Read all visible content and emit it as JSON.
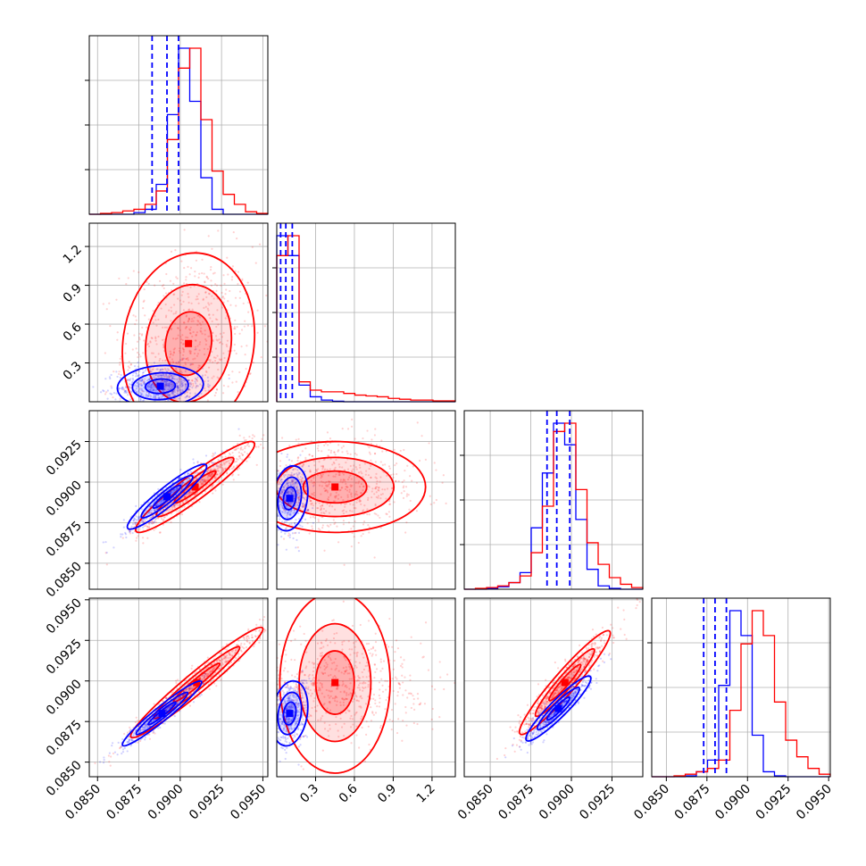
{
  "chart_data": {
    "type": "corner",
    "title": "",
    "grid": true,
    "n_params": 4,
    "colors": {
      "model_a": "#0000ff",
      "model_b": "#ff0000"
    },
    "series": [
      {
        "color": "#0000ff",
        "quantile_lines": [
          [
            0.0883,
            0.0892,
            0.0899
          ],
          [
            0.03,
            0.07,
            0.12
          ],
          [
            0.0885,
            0.0891,
            0.0899
          ],
          [
            0.0873,
            0.088,
            0.0887
          ]
        ]
      },
      {
        "color": "#ff0000"
      }
    ],
    "params": [
      {
        "range": [
          0.0845,
          0.0953
        ],
        "ticks": [
          "0.0850",
          "0.0875",
          "0.0900",
          "0.0925",
          "0.0950"
        ],
        "hist_blue": [
          0,
          0,
          0,
          0,
          1,
          3,
          18,
          60,
          100,
          68,
          22,
          3,
          0,
          0,
          0,
          0
        ],
        "hist_red": [
          0,
          0.5,
          1,
          2,
          3,
          6,
          14,
          45,
          88,
          100,
          57,
          26,
          12,
          6,
          1.5,
          0.5
        ]
      },
      {
        "range": [
          0.0,
          1.38
        ],
        "ticks": [
          "0.3",
          "0.6",
          "0.9",
          "1.2"
        ],
        "hist_blue": [
          100,
          88,
          10,
          3,
          1,
          0.3,
          0,
          0,
          0,
          0,
          0,
          0,
          0,
          0,
          0,
          0
        ],
        "hist_red": [
          88,
          100,
          12,
          7,
          6,
          6,
          5,
          4,
          3.5,
          3,
          2,
          1.5,
          1,
          1,
          0.5,
          0.5
        ]
      },
      {
        "range": [
          0.0834,
          0.0944
        ],
        "ticks": [
          "0.0850",
          "0.0875",
          "0.0900",
          "0.0925"
        ],
        "hist_blue": [
          0,
          0,
          0.5,
          1.5,
          4,
          10,
          37,
          70,
          100,
          87,
          42,
          12,
          2,
          0.5,
          0,
          0
        ],
        "hist_red": [
          0,
          0.5,
          1,
          2,
          4,
          8,
          22,
          50,
          95,
          100,
          60,
          28,
          15,
          7,
          3,
          1
        ]
      },
      {
        "range": [
          0.0841,
          0.0951
        ],
        "ticks": [
          "0.0850",
          "0.0875",
          "0.0900",
          "0.0925",
          "0.0950"
        ],
        "hist_blue": [
          0,
          0,
          0,
          0.5,
          3,
          10,
          55,
          100,
          85,
          25,
          3,
          0.5,
          0,
          0,
          0,
          0
        ],
        "hist_red": [
          0,
          0,
          0.5,
          1.5,
          3,
          5,
          10,
          40,
          80,
          100,
          85,
          45,
          22,
          12,
          5,
          1.5
        ]
      }
    ],
    "blobs": {
      "1-0": {
        "blue": {
          "c": [
            0.0888,
            0.12
          ],
          "s": [
            0.0013,
            0.08
          ],
          "rho": 0.1,
          "n": 600
        },
        "red": {
          "c": [
            0.0905,
            0.45
          ],
          "s": [
            0.002,
            0.35
          ],
          "rho": 0.1,
          "n": 700
        }
      },
      "2-0": {
        "blue": {
          "c": [
            0.0892,
            0.0891
          ],
          "s": [
            0.0012,
            0.001
          ],
          "rho": 0.93,
          "n": 550
        },
        "red": {
          "c": [
            0.0909,
            0.0897
          ],
          "s": [
            0.0018,
            0.0014
          ],
          "rho": 0.94,
          "n": 650
        }
      },
      "3-0": {
        "blue": {
          "c": [
            0.0889,
            0.088
          ],
          "s": [
            0.0012,
            0.001
          ],
          "rho": 0.96,
          "n": 550
        },
        "red": {
          "c": [
            0.091,
            0.0899
          ],
          "s": [
            0.002,
            0.0017
          ],
          "rho": 0.97,
          "n": 650
        }
      },
      "2-1": {
        "blue": {
          "c": [
            0.1,
            0.089
          ],
          "s": [
            0.07,
            0.001
          ],
          "rho": 0.2,
          "n": 450
        },
        "red": {
          "c": [
            0.45,
            0.0897
          ],
          "s": [
            0.35,
            0.0014
          ],
          "rho": 0.0,
          "n": 650
        }
      },
      "3-1": {
        "blue": {
          "c": [
            0.1,
            0.088
          ],
          "s": [
            0.07,
            0.001
          ],
          "rho": 0.2,
          "n": 450
        },
        "red": {
          "c": [
            0.45,
            0.0899
          ],
          "s": [
            0.35,
            0.0017
          ],
          "rho": 0.0,
          "n": 650
        }
      },
      "3-2": {
        "blue": {
          "c": [
            0.0892,
            0.0883
          ],
          "s": [
            0.001,
            0.001
          ],
          "rho": 0.93,
          "n": 550
        },
        "red": {
          "c": [
            0.0896,
            0.0899
          ],
          "s": [
            0.0014,
            0.0016
          ],
          "rho": 0.95,
          "n": 650
        }
      }
    }
  }
}
